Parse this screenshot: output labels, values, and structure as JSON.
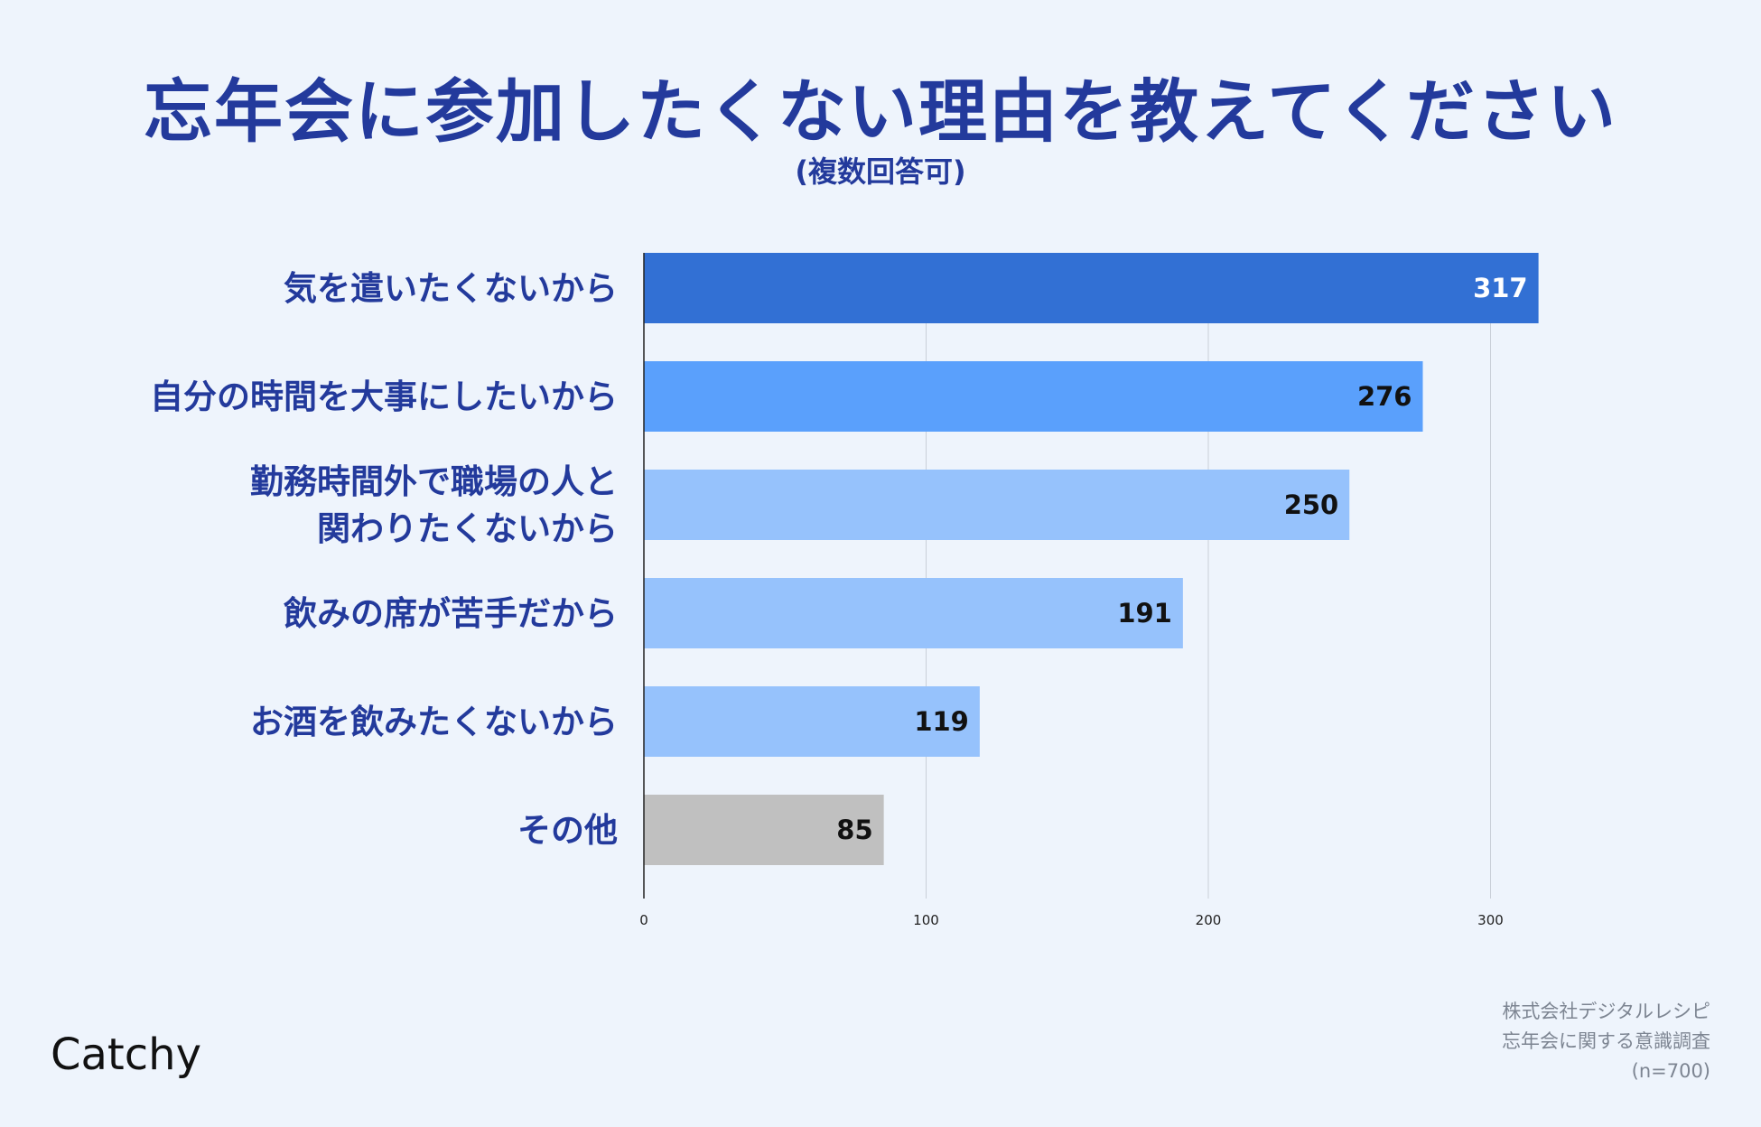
{
  "chart_data": {
    "type": "bar",
    "orientation": "horizontal",
    "title": "忘年会に参加したくない理由を教えてください",
    "subtitle": "(複数回答可)",
    "categories": [
      "気を遣いたくないから",
      "自分の時間を大事にしたいから",
      "勤務時間外で職場の人と\n関わりたくないから",
      "飲みの席が苦手だから",
      "お酒を飲みたくないから",
      "その他"
    ],
    "values": [
      317,
      276,
      250,
      191,
      119,
      85
    ],
    "bar_colors": [
      "#3270d4",
      "#5aa0fc",
      "#96c2fc",
      "#96c2fc",
      "#96c2fc",
      "#c0c0c0"
    ],
    "value_label_colors": [
      "#ffffff",
      "#111111",
      "#111111",
      "#111111",
      "#111111",
      "#111111"
    ],
    "xlim": [
      0,
      320
    ],
    "xticks": [
      0,
      100,
      200,
      300
    ],
    "grid": true,
    "xlabel": "",
    "ylabel": ""
  },
  "branding": {
    "logo": "Catchy"
  },
  "credit": [
    "株式会社デジタルレシピ",
    "忘年会に関する意識調査",
    "(n=700)"
  ]
}
